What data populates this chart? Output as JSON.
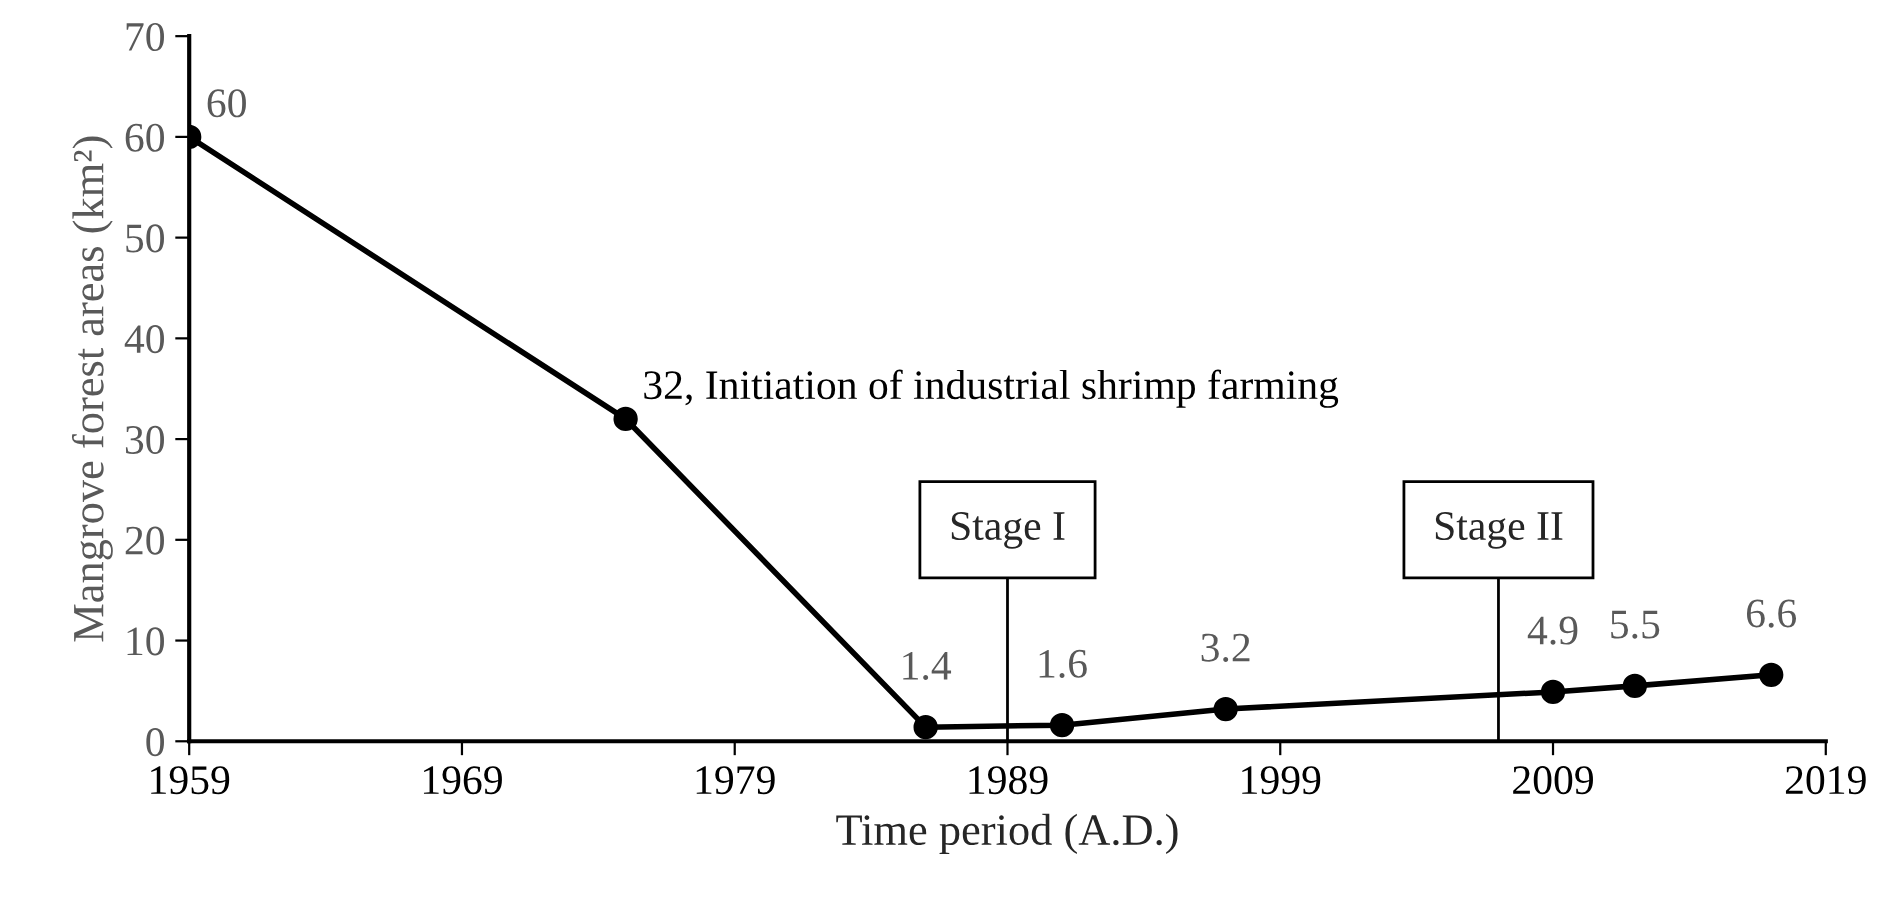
{
  "chart_data": {
    "type": "line",
    "xlabel": "Time period (A.D.)",
    "ylabel": "Mangrove forest areas (km²)",
    "x": [
      1959,
      1975,
      1986,
      1991,
      1997,
      2009,
      2012,
      2017
    ],
    "series": [
      {
        "color": "#000000",
        "values": [
          60,
          32,
          1.4,
          1.6,
          3.2,
          4.9,
          5.5,
          6.6
        ],
        "value_labels": [
          "60",
          "32, Initiation of industrial shrimp farming",
          "1.4",
          "1.6",
          "3.2",
          "4.9",
          "5.5",
          "6.6"
        ]
      }
    ],
    "xlim": [
      1959,
      2019
    ],
    "xticks": [
      1959,
      1969,
      1979,
      1989,
      1999,
      2009,
      2019
    ],
    "ylim": [
      0,
      70
    ],
    "yticks": [
      0,
      10,
      20,
      30,
      40,
      50,
      60,
      70
    ],
    "ref_lines": [
      {
        "axis": "x",
        "value": 1989,
        "label": "Stage I",
        "color": "#000000"
      },
      {
        "axis": "x",
        "value": 2007,
        "label": "Stage II",
        "color": "#000000"
      }
    ],
    "marker": "circle",
    "line_style": "solid",
    "grid": false,
    "legend": false
  }
}
